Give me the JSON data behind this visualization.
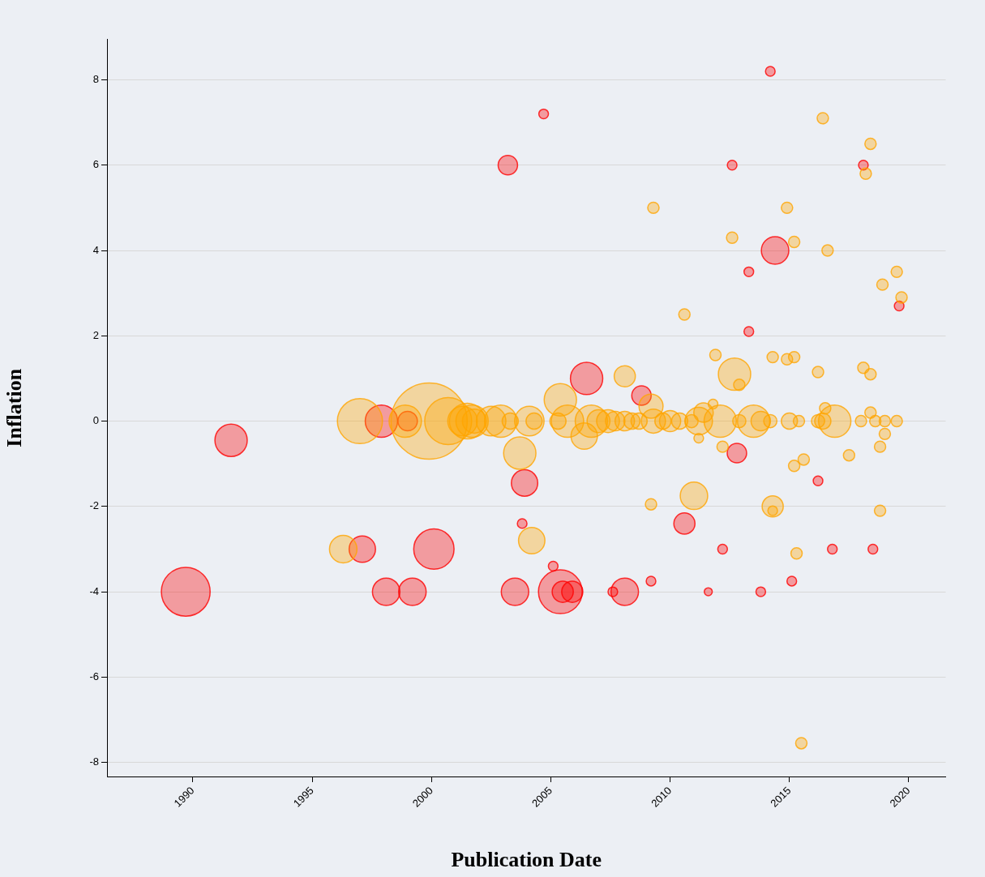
{
  "chart_data": {
    "type": "bubble",
    "xlabel": "Publication Date",
    "ylabel": "Inflation",
    "xlim": [
      1986.4,
      2021.55
    ],
    "ylim": [
      -8.33,
      8.95
    ],
    "xticks": [
      1990,
      1995,
      2000,
      2005,
      2010,
      2015,
      2020
    ],
    "yticks": [
      -8,
      -6,
      -4,
      -2,
      0,
      2,
      4,
      6,
      8
    ],
    "grid": "y",
    "series": [
      {
        "color": "#ffa500",
        "x": [
          1996.3,
          1997.0,
          1998.9,
          1999.9,
          2000.7,
          2001.3,
          2001.5,
          2001.7,
          2001.8,
          2002.5,
          2002.9,
          2003.3,
          2003.7,
          2004.1,
          2004.2,
          2004.3,
          2005.3,
          2005.4,
          2005.7,
          2006.4,
          2006.7,
          2007.0,
          2007.4,
          2007.7,
          2008.1,
          2008.1,
          2008.4,
          2008.7,
          2009.2,
          2009.2,
          2009.3,
          2009.3,
          2009.7,
          2010.0,
          2010.4,
          2010.6,
          2010.9,
          2011.0,
          2011.2,
          2011.2,
          2011.4,
          2011.8,
          2011.9,
          2012.1,
          2012.2,
          2012.6,
          2012.7,
          2012.9,
          2012.9,
          2013.5,
          2013.8,
          2014.2,
          2014.3,
          2014.3,
          2014.3,
          2014.9,
          2014.9,
          2015.0,
          2015.2,
          2015.2,
          2015.2,
          2015.3,
          2015.4,
          2015.6,
          2015.5,
          2016.2,
          2016.2,
          2016.4,
          2016.4,
          2016.5,
          2016.6,
          2016.9,
          2017.5,
          2018.0,
          2018.1,
          2018.2,
          2018.4,
          2018.4,
          2018.4,
          2018.6,
          2018.8,
          2018.8,
          2018.9,
          2019.0,
          2019.0,
          2019.5,
          2019.5,
          2019.7
        ],
        "values": [
          -3.0,
          0,
          0,
          0,
          0,
          0,
          0,
          0,
          0,
          0,
          0,
          0,
          -0.75,
          0,
          -2.8,
          0,
          0,
          0.5,
          0,
          -0.35,
          0,
          0,
          0,
          0,
          0,
          1.05,
          0,
          0,
          0.35,
          -1.95,
          5.0,
          0,
          0,
          0,
          0,
          2.5,
          0,
          -1.75,
          -0.4,
          0,
          0.2,
          0.4,
          1.55,
          0,
          -0.6,
          4.3,
          1.1,
          0.85,
          0,
          0,
          0,
          0,
          -2.0,
          -2.1,
          1.5,
          5.0,
          1.45,
          0,
          4.2,
          1.5,
          -1.05,
          -3.1,
          0,
          -0.9,
          -7.55,
          1.15,
          0,
          0,
          7.1,
          0.3,
          4.0,
          0,
          -0.8,
          0,
          1.25,
          5.8,
          0.2,
          6.5,
          1.1,
          0,
          -0.6,
          -2.1,
          3.2,
          0,
          -0.3,
          3.5,
          0,
          2.9
        ],
        "sizes": [
          0.13,
          0.35,
          0.18,
          1,
          0.38,
          0.15,
          0.22,
          0.18,
          0.1,
          0.15,
          0.18,
          0.045,
          0.18,
          0.15,
          0.12,
          0.045,
          0.045,
          0.18,
          0.18,
          0.12,
          0.18,
          0.09,
          0.09,
          0.065,
          0.065,
          0.077,
          0.045,
          0.045,
          0.1,
          0.022,
          0.022,
          0.1,
          0.045,
          0.077,
          0.045,
          0.022,
          0.03,
          0.13,
          0.016,
          0.13,
          0.065,
          0.016,
          0.022,
          0.18,
          0.022,
          0.022,
          0.18,
          0.022,
          0.03,
          0.18,
          0.065,
          0.03,
          0.077,
          0.016,
          0.022,
          0.022,
          0.022,
          0.045,
          0.022,
          0.022,
          0.022,
          0.022,
          0.022,
          0.022,
          0.022,
          0.022,
          0.03,
          0.045,
          0.022,
          0.022,
          0.022,
          0.18,
          0.022,
          0.022,
          0.022,
          0.022,
          0.022,
          0.022,
          0.022,
          0.022,
          0.022,
          0.022,
          0.022,
          0.022,
          0.022,
          0.022,
          0.022,
          0.022
        ]
      },
      {
        "color": "#ff0000",
        "x": [
          1989.7,
          1991.6,
          1997.1,
          1997.9,
          1998.1,
          1999.0,
          1999.2,
          2000.1,
          2003.2,
          2003.5,
          2003.8,
          2003.9,
          2004.7,
          2005.1,
          2005.4,
          2005.5,
          2005.9,
          2006.5,
          2007.6,
          2008.1,
          2008.8,
          2009.2,
          2010.6,
          2011.6,
          2012.2,
          2012.6,
          2012.8,
          2013.3,
          2013.3,
          2013.8,
          2014.2,
          2014.4,
          2015.1,
          2016.2,
          2016.8,
          2018.1,
          2018.5,
          2019.6
        ],
        "values": [
          -4,
          -0.45,
          -3,
          0,
          -4,
          0,
          -4,
          -3,
          6,
          -4,
          -2.4,
          -1.45,
          7.2,
          -3.4,
          -4,
          -4,
          -4,
          1.0,
          -4,
          -4,
          0.6,
          -3.75,
          -2.4,
          -4,
          -3,
          6,
          -0.75,
          2.1,
          3.5,
          -4,
          8.2,
          4.0,
          -3.75,
          -1.4,
          -3.0,
          6.0,
          -3.0,
          2.7
        ],
        "sizes": [
          0.41,
          0.18,
          0.12,
          0.18,
          0.13,
          0.065,
          0.13,
          0.28,
          0.065,
          0.13,
          0.016,
          0.12,
          0.016,
          0.016,
          0.33,
          0.077,
          0.077,
          0.18,
          0.016,
          0.13,
          0.065,
          0.016,
          0.077,
          0.011,
          0.016,
          0.016,
          0.065,
          0.016,
          0.016,
          0.016,
          0.016,
          0.13,
          0.016,
          0.016,
          0.016,
          0.016,
          0.016,
          0.016
        ]
      }
    ]
  }
}
